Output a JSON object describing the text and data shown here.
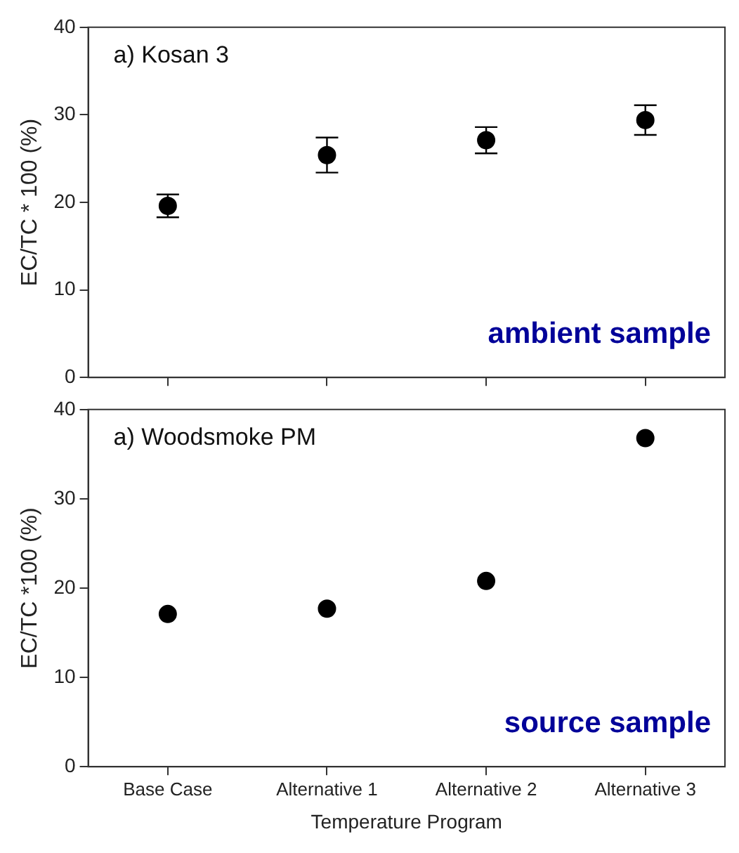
{
  "chart_data": [
    {
      "type": "scatter",
      "title": "a) Kosan 3",
      "ylabel": "EC/TC * 100 (%)",
      "categories": [
        null,
        null,
        null,
        null
      ],
      "series": [
        {
          "color": "#000000",
          "values": [
            19.6,
            25.4,
            27.1,
            29.4
          ],
          "errors": [
            1.3,
            2.0,
            1.5,
            1.7
          ]
        }
      ],
      "ylim": [
        0,
        40
      ],
      "yticks": [
        0,
        10,
        20,
        30,
        40
      ],
      "marker": "circle",
      "grid": false,
      "legend": false,
      "tick_labels": "y",
      "annotations": [
        "ambient sample"
      ]
    },
    {
      "type": "scatter",
      "title": "a) Woodsmoke PM",
      "ylabel": "EC/TC *100 (%)",
      "xlabel": "Temperature Program",
      "categories": [
        "Base Case",
        "Alternative 1",
        "Alternative 2",
        "Alternative 3"
      ],
      "series": [
        {
          "color": "#000000",
          "values": [
            17.1,
            17.7,
            20.8,
            36.8
          ]
        }
      ],
      "ylim": [
        0,
        40
      ],
      "yticks": [
        0,
        10,
        20,
        30,
        40
      ],
      "marker": "circle",
      "grid": false,
      "legend": false,
      "annotations": [
        "source sample"
      ]
    }
  ]
}
